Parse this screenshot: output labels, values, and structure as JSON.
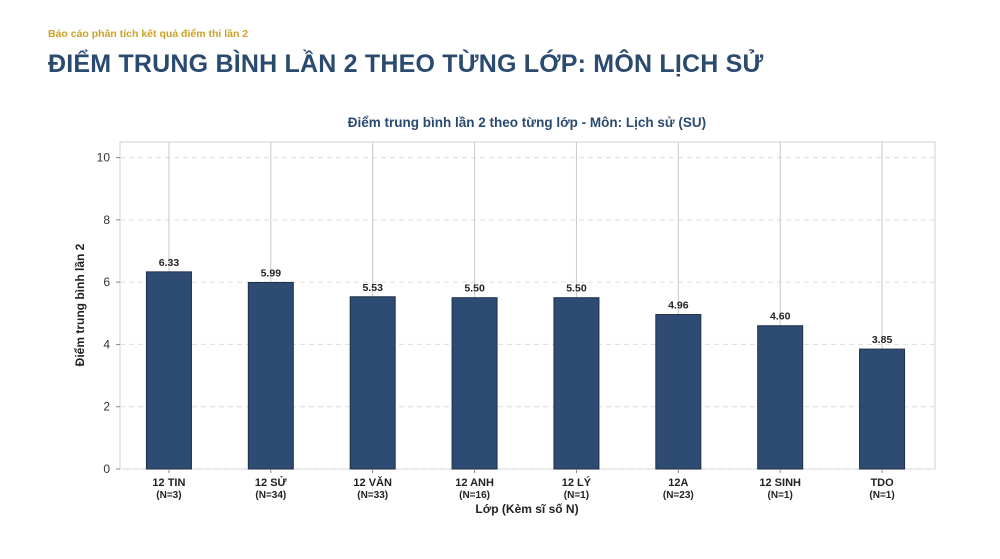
{
  "header": {
    "report_label": "Báo cáo phân tích kết quả điểm thi lần 2",
    "heading": "ĐIỂM TRUNG BÌNH LẦN 2 THEO TỪNG LỚP: MÔN LỊCH SỬ"
  },
  "chart_data": {
    "type": "bar",
    "title": "Điểm trung bình lần 2 theo từng lớp - Môn: Lịch sử (SU)",
    "xlabel": "Lớp (Kèm sĩ số N)",
    "ylabel": "Điểm trung bình lần 2",
    "ylim": [
      0,
      10.5
    ],
    "yticks": [
      0,
      2,
      4,
      6,
      8,
      10
    ],
    "grid": true,
    "categories": [
      "12 TIN",
      "12 SỬ",
      "12 VĂN",
      "12 ANH",
      "12 LÝ",
      "12A",
      "12 SINH",
      "TDO"
    ],
    "category_sublabels": [
      "(N=3)",
      "(N=34)",
      "(N=33)",
      "(N=16)",
      "(N=1)",
      "(N=23)",
      "(N=1)",
      "(N=1)"
    ],
    "values": [
      6.33,
      5.99,
      5.53,
      5.5,
      5.5,
      4.96,
      4.6,
      3.85
    ],
    "value_labels": [
      "6.33",
      "5.99",
      "5.53",
      "5.50",
      "5.50",
      "4.96",
      "4.60",
      "3.85"
    ],
    "bar_color": "#2e4c73",
    "bar_edge_color": "#1f2f45"
  }
}
